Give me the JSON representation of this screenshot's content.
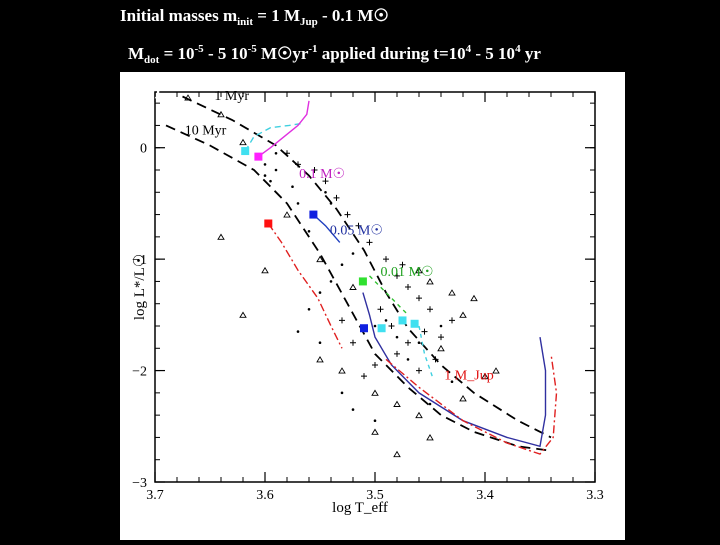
{
  "header": {
    "line1_a": "Initial masses m",
    "line1_sub": "init",
    "line1_b": " = 1 M",
    "line1_sub2": "Jup",
    "line1_c": " - 0.1 M",
    "sun_symbol": "☉",
    "line2_a": "M",
    "line2_sub": "dot",
    "line2_b": " = 10",
    "line2_sup1": "-5",
    "line2_c": " - 5 10",
    "line2_sup2": "-5",
    "line2_d": " M",
    "line2_e": "yr",
    "line2_sup3": "-1",
    "line2_f": " applied during t=10",
    "line2_sup4": "4",
    "line2_g": " - 5 10",
    "line2_sup5": "4",
    "line2_h": " yr",
    "alpha_label": "(α=0)"
  },
  "chart_data": {
    "type": "scatter",
    "xlim": [
      3.7,
      3.3
    ],
    "ylim": [
      -3,
      0.5
    ],
    "xticks": [
      "3.7",
      "3.6",
      "3.5",
      "3.4",
      "3.3"
    ],
    "yticks": [
      "0",
      "−1",
      "−2",
      "−3"
    ],
    "xlabel": "log T_eff",
    "ylabel": "log L*/L☉",
    "isochrone_labels": [
      "1 Myr",
      "10 Myr"
    ],
    "mass_labels": [
      {
        "text": "0.1 M☉",
        "x": 3.569,
        "y": -0.27,
        "color": "#c020c0"
      },
      {
        "text": "0.05 M☉",
        "x": 3.541,
        "y": -0.78,
        "color": "#2030a0"
      },
      {
        "text": "0.01 M☉",
        "x": 3.495,
        "y": -1.15,
        "color": "#20a020"
      },
      {
        "text": "1 M_Jup",
        "x": 3.437,
        "y": -2.08,
        "color": "#e01010"
      }
    ],
    "markers": [
      {
        "x": 3.618,
        "y": -0.03,
        "color": "#40e0f0"
      },
      {
        "x": 3.606,
        "y": -0.08,
        "color": "#ff20ff"
      },
      {
        "x": 3.556,
        "y": -0.6,
        "color": "#1020e0"
      },
      {
        "x": 3.597,
        "y": -0.68,
        "color": "#ff1010"
      },
      {
        "x": 3.511,
        "y": -1.2,
        "color": "#30e030"
      },
      {
        "x": 3.51,
        "y": -1.62,
        "color": "#1020e0"
      },
      {
        "x": 3.494,
        "y": -1.62,
        "color": "#40e0f0"
      },
      {
        "x": 3.475,
        "y": -1.55,
        "color": "#40e0f0"
      },
      {
        "x": 3.464,
        "y": -1.58,
        "color": "#40e0f0"
      }
    ],
    "tracks": [
      {
        "name": "",
        "color": "#000000",
        "dash": "10,6",
        "points": [
          [
            3.675,
            0.46
          ],
          [
            3.63,
            0.25
          ],
          [
            3.59,
            0.02
          ],
          [
            3.56,
            -0.25
          ],
          [
            3.535,
            -0.55
          ],
          [
            3.51,
            -0.92
          ],
          [
            3.49,
            -1.3
          ],
          [
            3.47,
            -1.62
          ],
          [
            3.44,
            -1.95
          ],
          [
            3.41,
            -2.2
          ],
          [
            3.37,
            -2.45
          ],
          [
            3.34,
            -2.6
          ]
        ]
      },
      {
        "name": "",
        "color": "#000000",
        "dash": "10,6",
        "points": [
          [
            3.69,
            0.2
          ],
          [
            3.65,
            0.02
          ],
          [
            3.61,
            -0.2
          ],
          [
            3.58,
            -0.5
          ],
          [
            3.55,
            -0.95
          ],
          [
            3.525,
            -1.4
          ],
          [
            3.5,
            -1.85
          ],
          [
            3.47,
            -2.15
          ],
          [
            3.44,
            -2.4
          ],
          [
            3.41,
            -2.55
          ],
          [
            3.37,
            -2.68
          ],
          [
            3.34,
            -2.72
          ]
        ]
      },
      {
        "name": "",
        "color": "#40d0e0",
        "dash": "6,4",
        "points": [
          [
            3.618,
            -0.03
          ],
          [
            3.61,
            0.1
          ],
          [
            3.595,
            0.18
          ],
          [
            3.578,
            0.2
          ],
          [
            3.565,
            0.22
          ]
        ]
      },
      {
        "name": "",
        "color": "#e030e0",
        "dash": "",
        "points": [
          [
            3.606,
            -0.08
          ],
          [
            3.595,
            0.0
          ],
          [
            3.58,
            0.12
          ],
          [
            3.57,
            0.2
          ],
          [
            3.562,
            0.3
          ],
          [
            3.56,
            0.42
          ]
        ]
      },
      {
        "name": "",
        "color": "#e02020",
        "dash": "8,3,2,3",
        "points": [
          [
            3.597,
            -0.68
          ],
          [
            3.585,
            -0.85
          ],
          [
            3.57,
            -1.1
          ],
          [
            3.552,
            -1.35
          ],
          [
            3.54,
            -1.6
          ],
          [
            3.53,
            -1.8
          ]
        ]
      },
      {
        "name": "",
        "color": "#2040c0",
        "dash": "",
        "points": [
          [
            3.556,
            -0.6
          ],
          [
            3.545,
            -0.7
          ],
          [
            3.532,
            -0.85
          ]
        ]
      },
      {
        "name": "",
        "color": "#3030a0",
        "dash": "",
        "points": [
          [
            3.511,
            -1.3
          ],
          [
            3.505,
            -1.5
          ],
          [
            3.5,
            -1.7
          ],
          [
            3.485,
            -1.95
          ],
          [
            3.46,
            -2.2
          ],
          [
            3.42,
            -2.45
          ],
          [
            3.38,
            -2.6
          ],
          [
            3.35,
            -2.68
          ],
          [
            3.345,
            -2.4
          ],
          [
            3.345,
            -2.0
          ],
          [
            3.35,
            -1.7
          ]
        ]
      },
      {
        "name": "",
        "color": "#e02020",
        "dash": "8,3,2,3",
        "points": [
          [
            3.49,
            -1.9
          ],
          [
            3.46,
            -2.15
          ],
          [
            3.42,
            -2.45
          ],
          [
            3.38,
            -2.65
          ],
          [
            3.35,
            -2.75
          ],
          [
            3.338,
            -2.6
          ],
          [
            3.335,
            -2.2
          ],
          [
            3.34,
            -1.85
          ]
        ]
      },
      {
        "name": "",
        "color": "#40d0e0",
        "dash": "4,4",
        "points": [
          [
            3.46,
            -1.6
          ],
          [
            3.455,
            -1.85
          ],
          [
            3.448,
            -2.05
          ]
        ]
      },
      {
        "name": "",
        "color": "#30c030",
        "dash": "4,4",
        "points": [
          [
            3.505,
            -1.15
          ],
          [
            3.49,
            -1.3
          ],
          [
            3.47,
            -1.5
          ]
        ]
      }
    ],
    "observed_crosses": [
      [
        3.58,
        -0.05
      ],
      [
        3.57,
        -0.15
      ],
      [
        3.555,
        -0.2
      ],
      [
        3.545,
        -0.3
      ],
      [
        3.535,
        -0.45
      ],
      [
        3.525,
        -0.6
      ],
      [
        3.515,
        -0.7
      ],
      [
        3.505,
        -0.85
      ],
      [
        3.49,
        -1.0
      ],
      [
        3.48,
        -1.15
      ],
      [
        3.47,
        -1.25
      ],
      [
        3.46,
        -1.35
      ],
      [
        3.45,
        -1.45
      ],
      [
        3.455,
        -1.65
      ],
      [
        3.47,
        -1.75
      ],
      [
        3.48,
        -1.85
      ],
      [
        3.5,
        -1.95
      ],
      [
        3.51,
        -2.05
      ],
      [
        3.44,
        -1.7
      ],
      [
        3.43,
        -1.55
      ],
      [
        3.445,
        -1.9
      ],
      [
        3.46,
        -2.0
      ],
      [
        3.52,
        -1.75
      ],
      [
        3.53,
        -1.55
      ],
      [
        3.495,
        -1.45
      ],
      [
        3.475,
        -1.05
      ],
      [
        3.485,
        -1.6
      ]
    ],
    "observed_triangles": [
      [
        3.67,
        0.45
      ],
      [
        3.64,
        0.3
      ],
      [
        3.62,
        0.05
      ],
      [
        3.58,
        -0.6
      ],
      [
        3.64,
        -0.8
      ],
      [
        3.55,
        -1.0
      ],
      [
        3.52,
        -1.25
      ],
      [
        3.46,
        -1.1
      ],
      [
        3.45,
        -1.2
      ],
      [
        3.43,
        -1.3
      ],
      [
        3.42,
        -1.5
      ],
      [
        3.5,
        -2.2
      ],
      [
        3.48,
        -2.3
      ],
      [
        3.46,
        -2.4
      ],
      [
        3.45,
        -2.6
      ],
      [
        3.42,
        -2.25
      ],
      [
        3.4,
        -2.05
      ],
      [
        3.53,
        -2.0
      ],
      [
        3.55,
        -1.9
      ],
      [
        3.48,
        -2.75
      ],
      [
        3.5,
        -2.55
      ],
      [
        3.6,
        -1.1
      ],
      [
        3.62,
        -1.5
      ],
      [
        3.44,
        -1.8
      ],
      [
        3.41,
        -1.35
      ],
      [
        3.39,
        -2.0
      ]
    ],
    "observed_dots": [
      [
        3.6,
        -0.15
      ],
      [
        3.59,
        -0.2
      ],
      [
        3.6,
        -0.25
      ],
      [
        3.59,
        -0.05
      ],
      [
        3.595,
        -0.3
      ],
      [
        3.575,
        -0.35
      ],
      [
        3.57,
        -0.5
      ],
      [
        3.54,
        -0.5
      ],
      [
        3.545,
        -0.4
      ],
      [
        3.56,
        -0.75
      ],
      [
        3.52,
        -0.95
      ],
      [
        3.53,
        -1.05
      ],
      [
        3.54,
        -1.2
      ],
      [
        3.55,
        -1.3
      ],
      [
        3.56,
        -1.45
      ],
      [
        3.49,
        -1.55
      ],
      [
        3.5,
        -1.6
      ],
      [
        3.48,
        -1.7
      ],
      [
        3.47,
        -1.9
      ],
      [
        3.46,
        -1.75
      ],
      [
        3.44,
        -1.6
      ],
      [
        3.43,
        -2.1
      ],
      [
        3.45,
        -2.3
      ],
      [
        3.52,
        -2.35
      ],
      [
        3.5,
        -2.45
      ],
      [
        3.55,
        -1.75
      ],
      [
        3.57,
        -1.65
      ],
      [
        3.53,
        -2.2
      ]
    ]
  }
}
